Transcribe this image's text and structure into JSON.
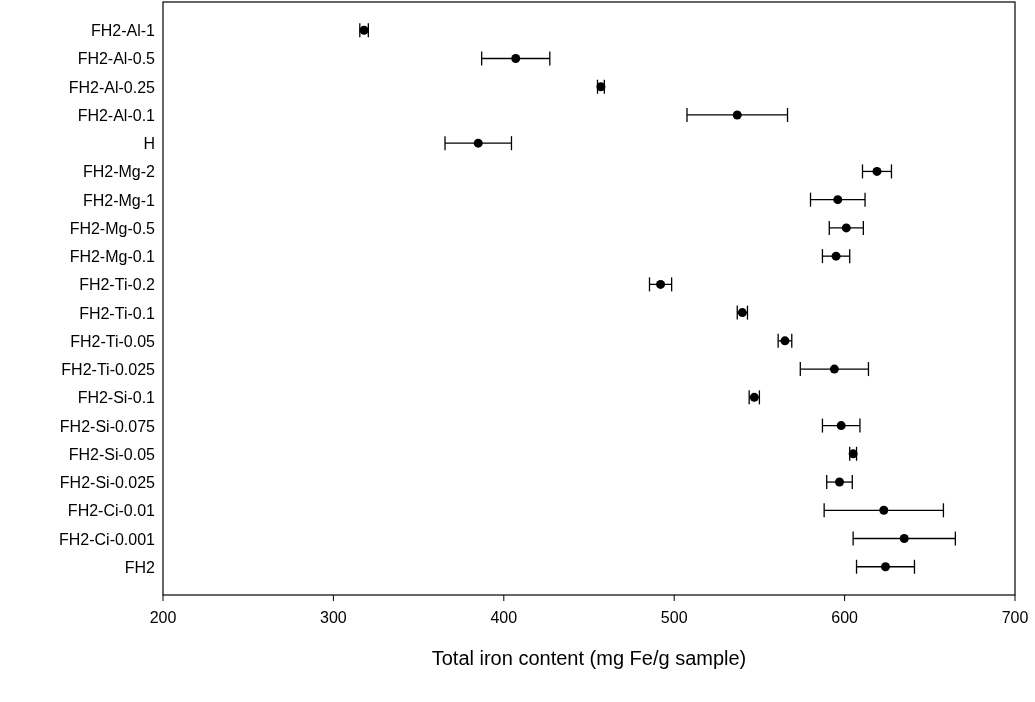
{
  "chart_data": {
    "type": "scatter",
    "orientation": "horizontal",
    "xlabel": "Total iron content (mg Fe/g sample)",
    "categories": [
      "FH2-Al-1",
      "FH2-Al-0.5",
      "FH2-Al-0.25",
      "FH2-Al-0.1",
      "H",
      "FH2-Mg-2",
      "FH2-Mg-1",
      "FH2-Mg-0.5",
      "FH2-Mg-0.1",
      "FH2-Ti-0.2",
      "FH2-Ti-0.1",
      "FH2-Ti-0.05",
      "FH2-Ti-0.025",
      "FH2-Si-0.1",
      "FH2-Si-0.075",
      "FH2-Si-0.05",
      "FH2-Si-0.025",
      "FH2-Ci-0.01",
      "FH2-Ci-0.001",
      "FH2"
    ],
    "series": [
      {
        "color": "#000000",
        "values": [
          318,
          407,
          457,
          537,
          385,
          619,
          596,
          601,
          595,
          492,
          540,
          565,
          594,
          547,
          598,
          605,
          597,
          623,
          635,
          624
        ],
        "errors": [
          2.5,
          20,
          2,
          29.5,
          19.5,
          8.5,
          16,
          10,
          8,
          6.5,
          3,
          4,
          20,
          3,
          11,
          2,
          7.5,
          35,
          30,
          17
        ]
      }
    ],
    "xlim": [
      200,
      700
    ],
    "xticks": [
      200,
      300,
      400,
      500,
      600,
      700
    ],
    "marker": "circle",
    "grid": false
  }
}
